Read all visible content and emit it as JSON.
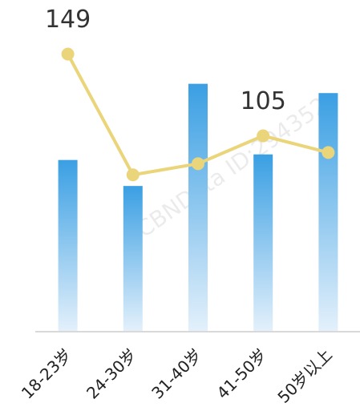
{
  "chart_data": {
    "type": "bar_line",
    "categories": [
      "18-23岁",
      "24-30岁",
      "31-40岁",
      "41-50岁",
      "50岁以上"
    ],
    "series": [
      {
        "type": "bar",
        "color": "#3a9fe3",
        "values": [
          92,
          78,
          133,
          95,
          128
        ]
      },
      {
        "type": "line",
        "color": "#ead57a",
        "values": [
          149,
          84,
          90,
          105,
          96
        ],
        "value_labels": [
          "149",
          null,
          null,
          "105",
          null
        ]
      }
    ],
    "ylim": [
      0,
      160
    ],
    "watermark": "CBNData ID:294352"
  }
}
